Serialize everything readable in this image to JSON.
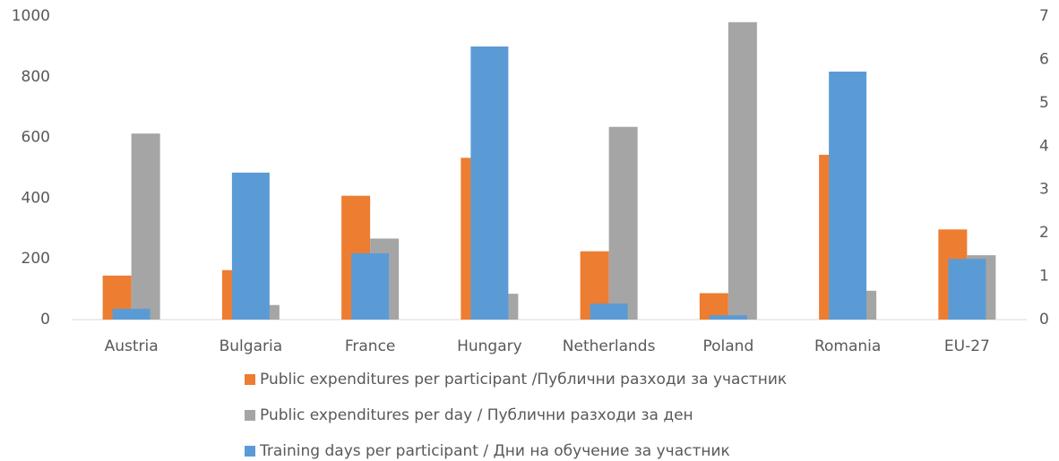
{
  "chart_data": {
    "type": "bar",
    "categories": [
      "Austria",
      "Bulgaria",
      "France",
      "Hungary",
      "Netherlands",
      "Poland",
      "Romania",
      "EU-27"
    ],
    "series": [
      {
        "name": "Public expenditures per participant /Публични разходи за участник",
        "color": "#ed7d31",
        "values": [
          145,
          163,
          408,
          533,
          225,
          87,
          543,
          297
        ]
      },
      {
        "name": "Public expenditures per day / Публични разходи за ден",
        "color": "#a5a5a5",
        "values": [
          613,
          48,
          267,
          85,
          635,
          980,
          95,
          212
        ]
      },
      {
        "name": "Training days per participant / Дни на обучение за участник",
        "color": "#5b9bd5",
        "axis": "y2",
        "values": [
          0.25,
          3.39,
          1.53,
          6.3,
          0.37,
          0.1,
          5.72,
          1.4
        ]
      }
    ],
    "ylim": [
      0,
      1000
    ],
    "yticks": [
      0,
      200,
      400,
      600,
      800,
      1000
    ],
    "y2lim": [
      0,
      7
    ],
    "y2ticks": [
      0,
      1,
      2,
      3,
      4,
      5,
      6,
      7
    ],
    "legend": "bottom"
  }
}
